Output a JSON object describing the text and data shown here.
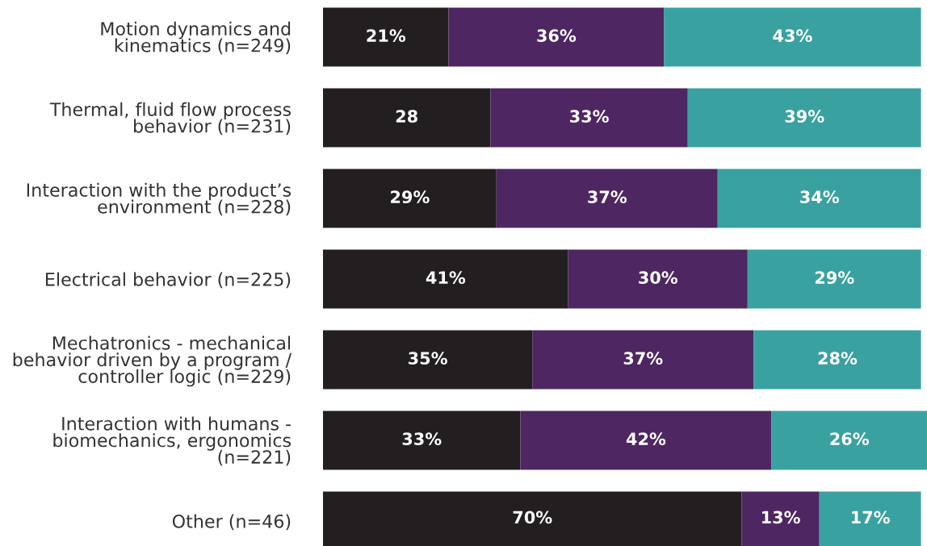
{
  "chart_data": {
    "type": "bar",
    "orientation": "horizontal",
    "stacked": true,
    "xlim": [
      0,
      101
    ],
    "tick_labels": "y",
    "grid": false,
    "legend": false,
    "categories": [
      "Motion dynamics and\nkinematics (n=249)",
      "Thermal, fluid flow process\nbehavior (n=231)",
      "Interaction with the product’s\nenvironment (n=228)",
      "Electrical behavior (n=225)",
      "Mechatronics - mechanical\nbehavior driven by a program /\ncontroller logic (n=229)",
      "Interaction with humans -\nbiomechanics, ergonomics\n(n=221)",
      "Other (n=46)"
    ],
    "series": [
      {
        "color": "#231f20",
        "values": [
          21,
          28,
          29,
          41,
          35,
          33,
          70
        ],
        "value_labels": [
          "21%",
          "28",
          "29%",
          "41%",
          "35%",
          "33%",
          "70%"
        ]
      },
      {
        "color": "#4e2662",
        "values": [
          36,
          33,
          37,
          30,
          37,
          42,
          13
        ],
        "value_labels": [
          "36%",
          "33%",
          "37%",
          "30%",
          "37%",
          "42%",
          "13%"
        ]
      },
      {
        "color": "#3aa1a1",
        "values": [
          43,
          39,
          34,
          29,
          28,
          26,
          17
        ],
        "value_labels": [
          "43%",
          "39%",
          "34%",
          "29%",
          "28%",
          "26%",
          "17%"
        ]
      }
    ]
  }
}
